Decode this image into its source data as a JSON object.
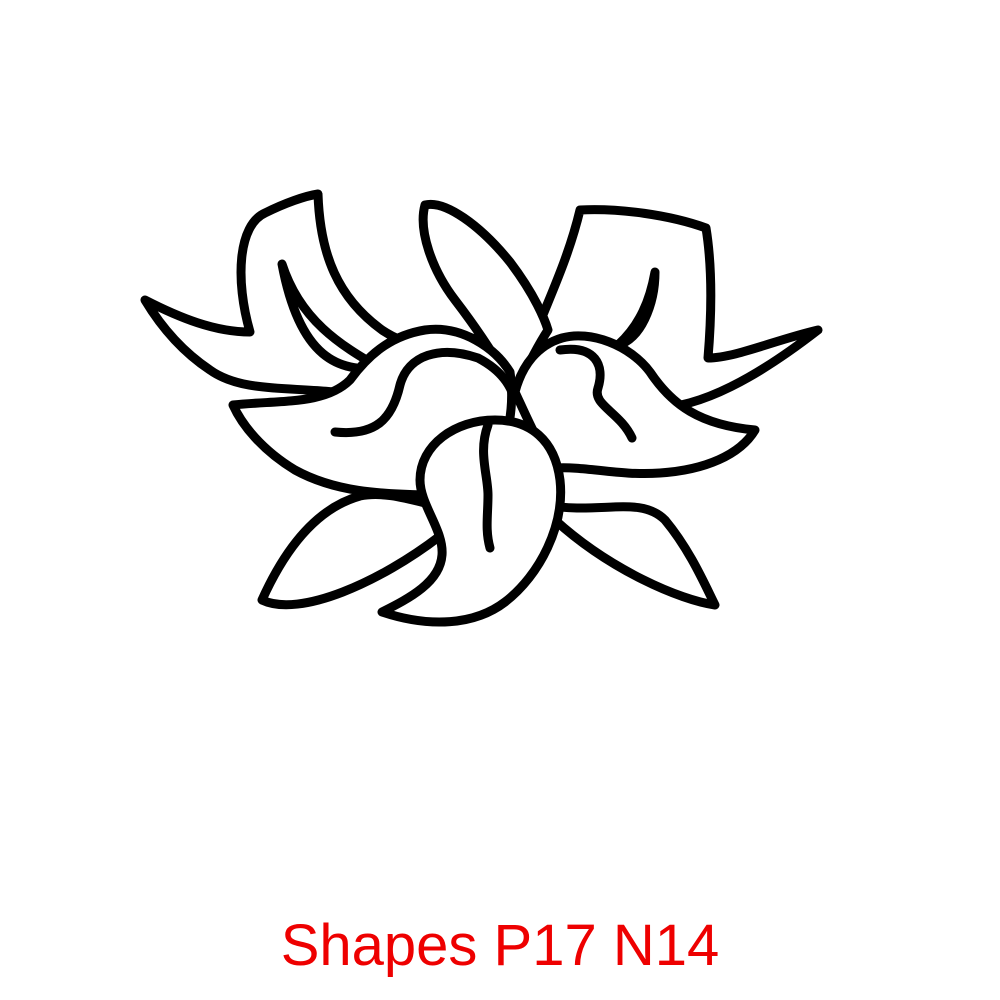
{
  "figure": {
    "icon": "lotus-flower-line-art-icon",
    "stroke_color": "#000000",
    "fill_color": "#ffffff"
  },
  "caption": {
    "text": "Shapes P17 N14",
    "color": "#ee0000"
  }
}
